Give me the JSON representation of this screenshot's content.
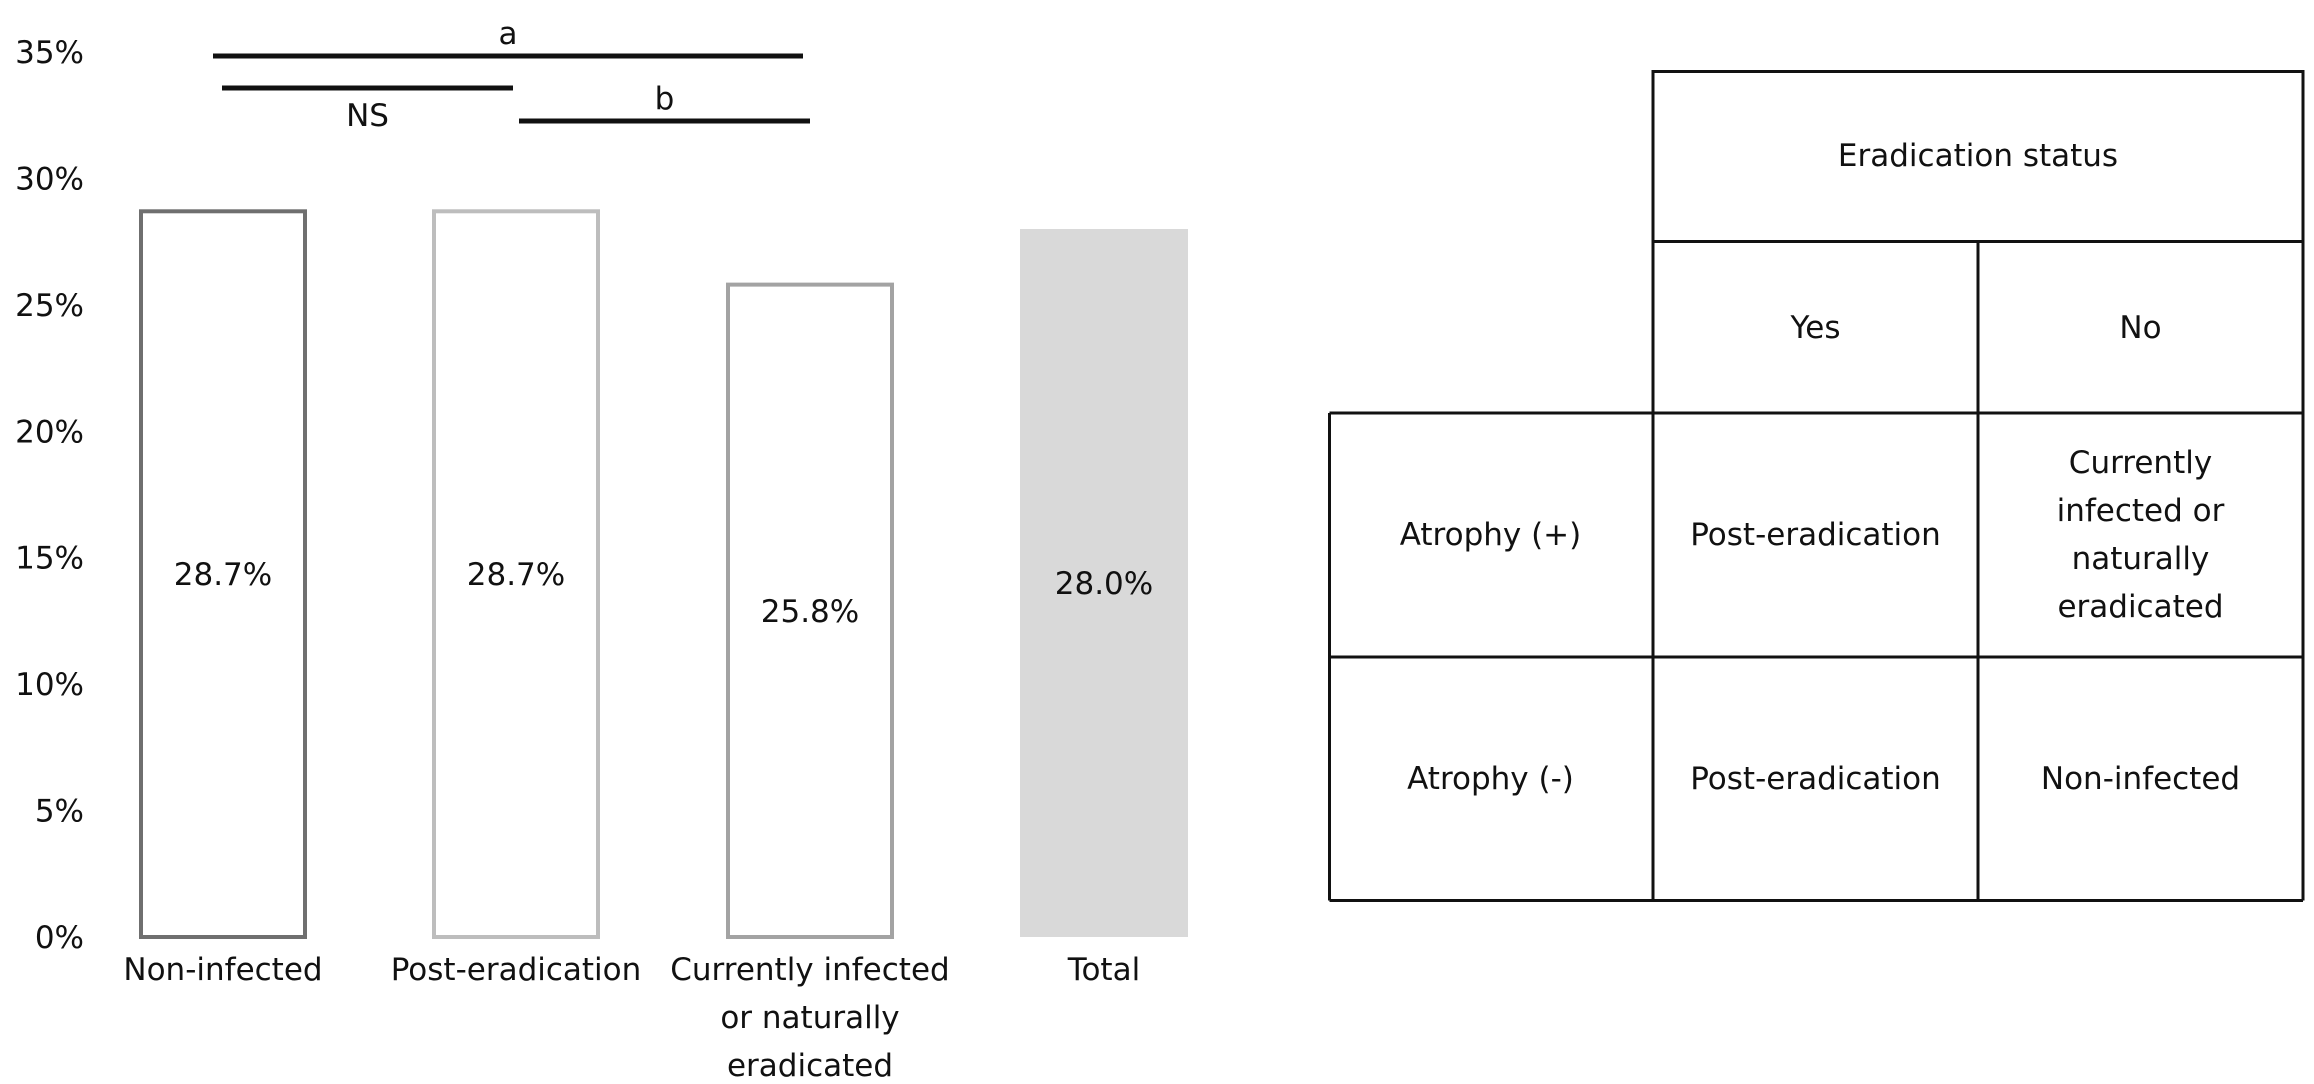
{
  "chart_data": {
    "type": "bar",
    "categories": [
      "Non-infected",
      "Post-eradication",
      "Currently infected or naturally eradicated",
      "Total"
    ],
    "category_labels": [
      [
        "Non-infected"
      ],
      [
        "Post-eradication"
      ],
      [
        "Currently infected",
        "or naturally",
        "eradicated"
      ],
      [
        "Total"
      ]
    ],
    "values": [
      28.7,
      28.7,
      25.8,
      28.0
    ],
    "data_labels": [
      "28.7%",
      "28.7%",
      "25.8%",
      "28.0%"
    ],
    "bar_styles": [
      {
        "stroke": "#6f6f6f",
        "fill": "none"
      },
      {
        "stroke": "#bdbdbd",
        "fill": "none"
      },
      {
        "stroke": "#a3a3a3",
        "fill": "none"
      },
      {
        "stroke": "none",
        "fill": "#d9d9d9"
      }
    ],
    "ylim": [
      0,
      35
    ],
    "yticks": [
      0,
      5,
      10,
      15,
      20,
      25,
      30,
      35
    ],
    "ytick_labels": [
      "0%",
      "5%",
      "10%",
      "15%",
      "20%",
      "25%",
      "30%",
      "35%"
    ],
    "xlabel": "",
    "ylabel": "",
    "title": "",
    "grid": false,
    "annotations": [
      {
        "label": "a",
        "from": 0,
        "to": 2,
        "label_position": "above"
      },
      {
        "label": "NS",
        "from": 0,
        "to": 1,
        "label_position": "below"
      },
      {
        "label": "b",
        "from": 1,
        "to": 2,
        "label_position": "above"
      }
    ]
  },
  "table": {
    "header": "Eradication status",
    "col_yes": "Yes",
    "col_no": "No",
    "row1_label": "Atrophy (+)",
    "row1_yes": "Post-eradication",
    "row1_no": "Currently\ninfected or\nnaturally\neradicated",
    "row2_label": "Atrophy (-)",
    "row2_yes": "Post-eradication",
    "row2_no": "Non-infected"
  },
  "colors": {
    "line": "#111111",
    "total_fill": "#d9d9d9"
  }
}
